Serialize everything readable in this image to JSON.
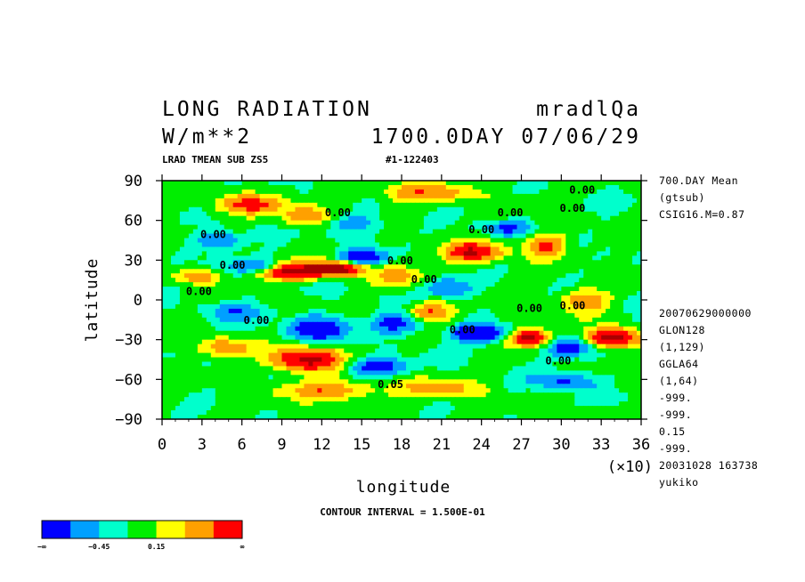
{
  "header": {
    "title": "LONG RADIATION",
    "code": "mradlQa",
    "units": "W/m**2",
    "time": "1700.0DAY 07/06/29",
    "subtitle": "LRAD TMEAN SUB ZS5",
    "id": "#1-122403"
  },
  "side_info": {
    "top": [
      "700.DAY Mean",
      "(gtsub)",
      "CSIG16.M=0.87"
    ],
    "bottom": [
      "20070629000000",
      "GLON128",
      "(1,129)",
      "GGLA64",
      "(1,64)",
      "-999.",
      "-999.",
      "0.15",
      "-999.",
      "20031028 163738",
      "yukiko"
    ]
  },
  "contour_interval": "CONTOUR INTERVAL = 1.500E-01",
  "chart_data": {
    "type": "heatmap",
    "xlabel": "longitude",
    "ylabel": "latitude",
    "x_scale_label": "(×10)",
    "xlim": [
      0,
      36
    ],
    "ylim": [
      -90,
      90
    ],
    "x_ticks": [
      "0",
      "3",
      "6",
      "9",
      "12",
      "15",
      "18",
      "21",
      "24",
      "27",
      "30",
      "33",
      "36"
    ],
    "y_ticks": [
      "90",
      "60",
      "30",
      "0",
      "−30",
      "−60",
      "−90"
    ],
    "contour_labels": [
      "0.00",
      "0.00",
      "0.00",
      "0.00",
      "0.00",
      "0.00",
      "0.00",
      "0.00",
      "0.00",
      "0.00",
      "0.00",
      "0.00",
      "0.00",
      "0.00",
      "0.00",
      "0.05"
    ],
    "colorbar": {
      "colors": [
        "#0000ff",
        "#00a0ff",
        "#00ffcc",
        "#00ee00",
        "#ffff00",
        "#ffa000",
        "#ff0000"
      ],
      "labels": [
        "−∞",
        "−0.45",
        "0.15",
        "∞"
      ]
    }
  }
}
